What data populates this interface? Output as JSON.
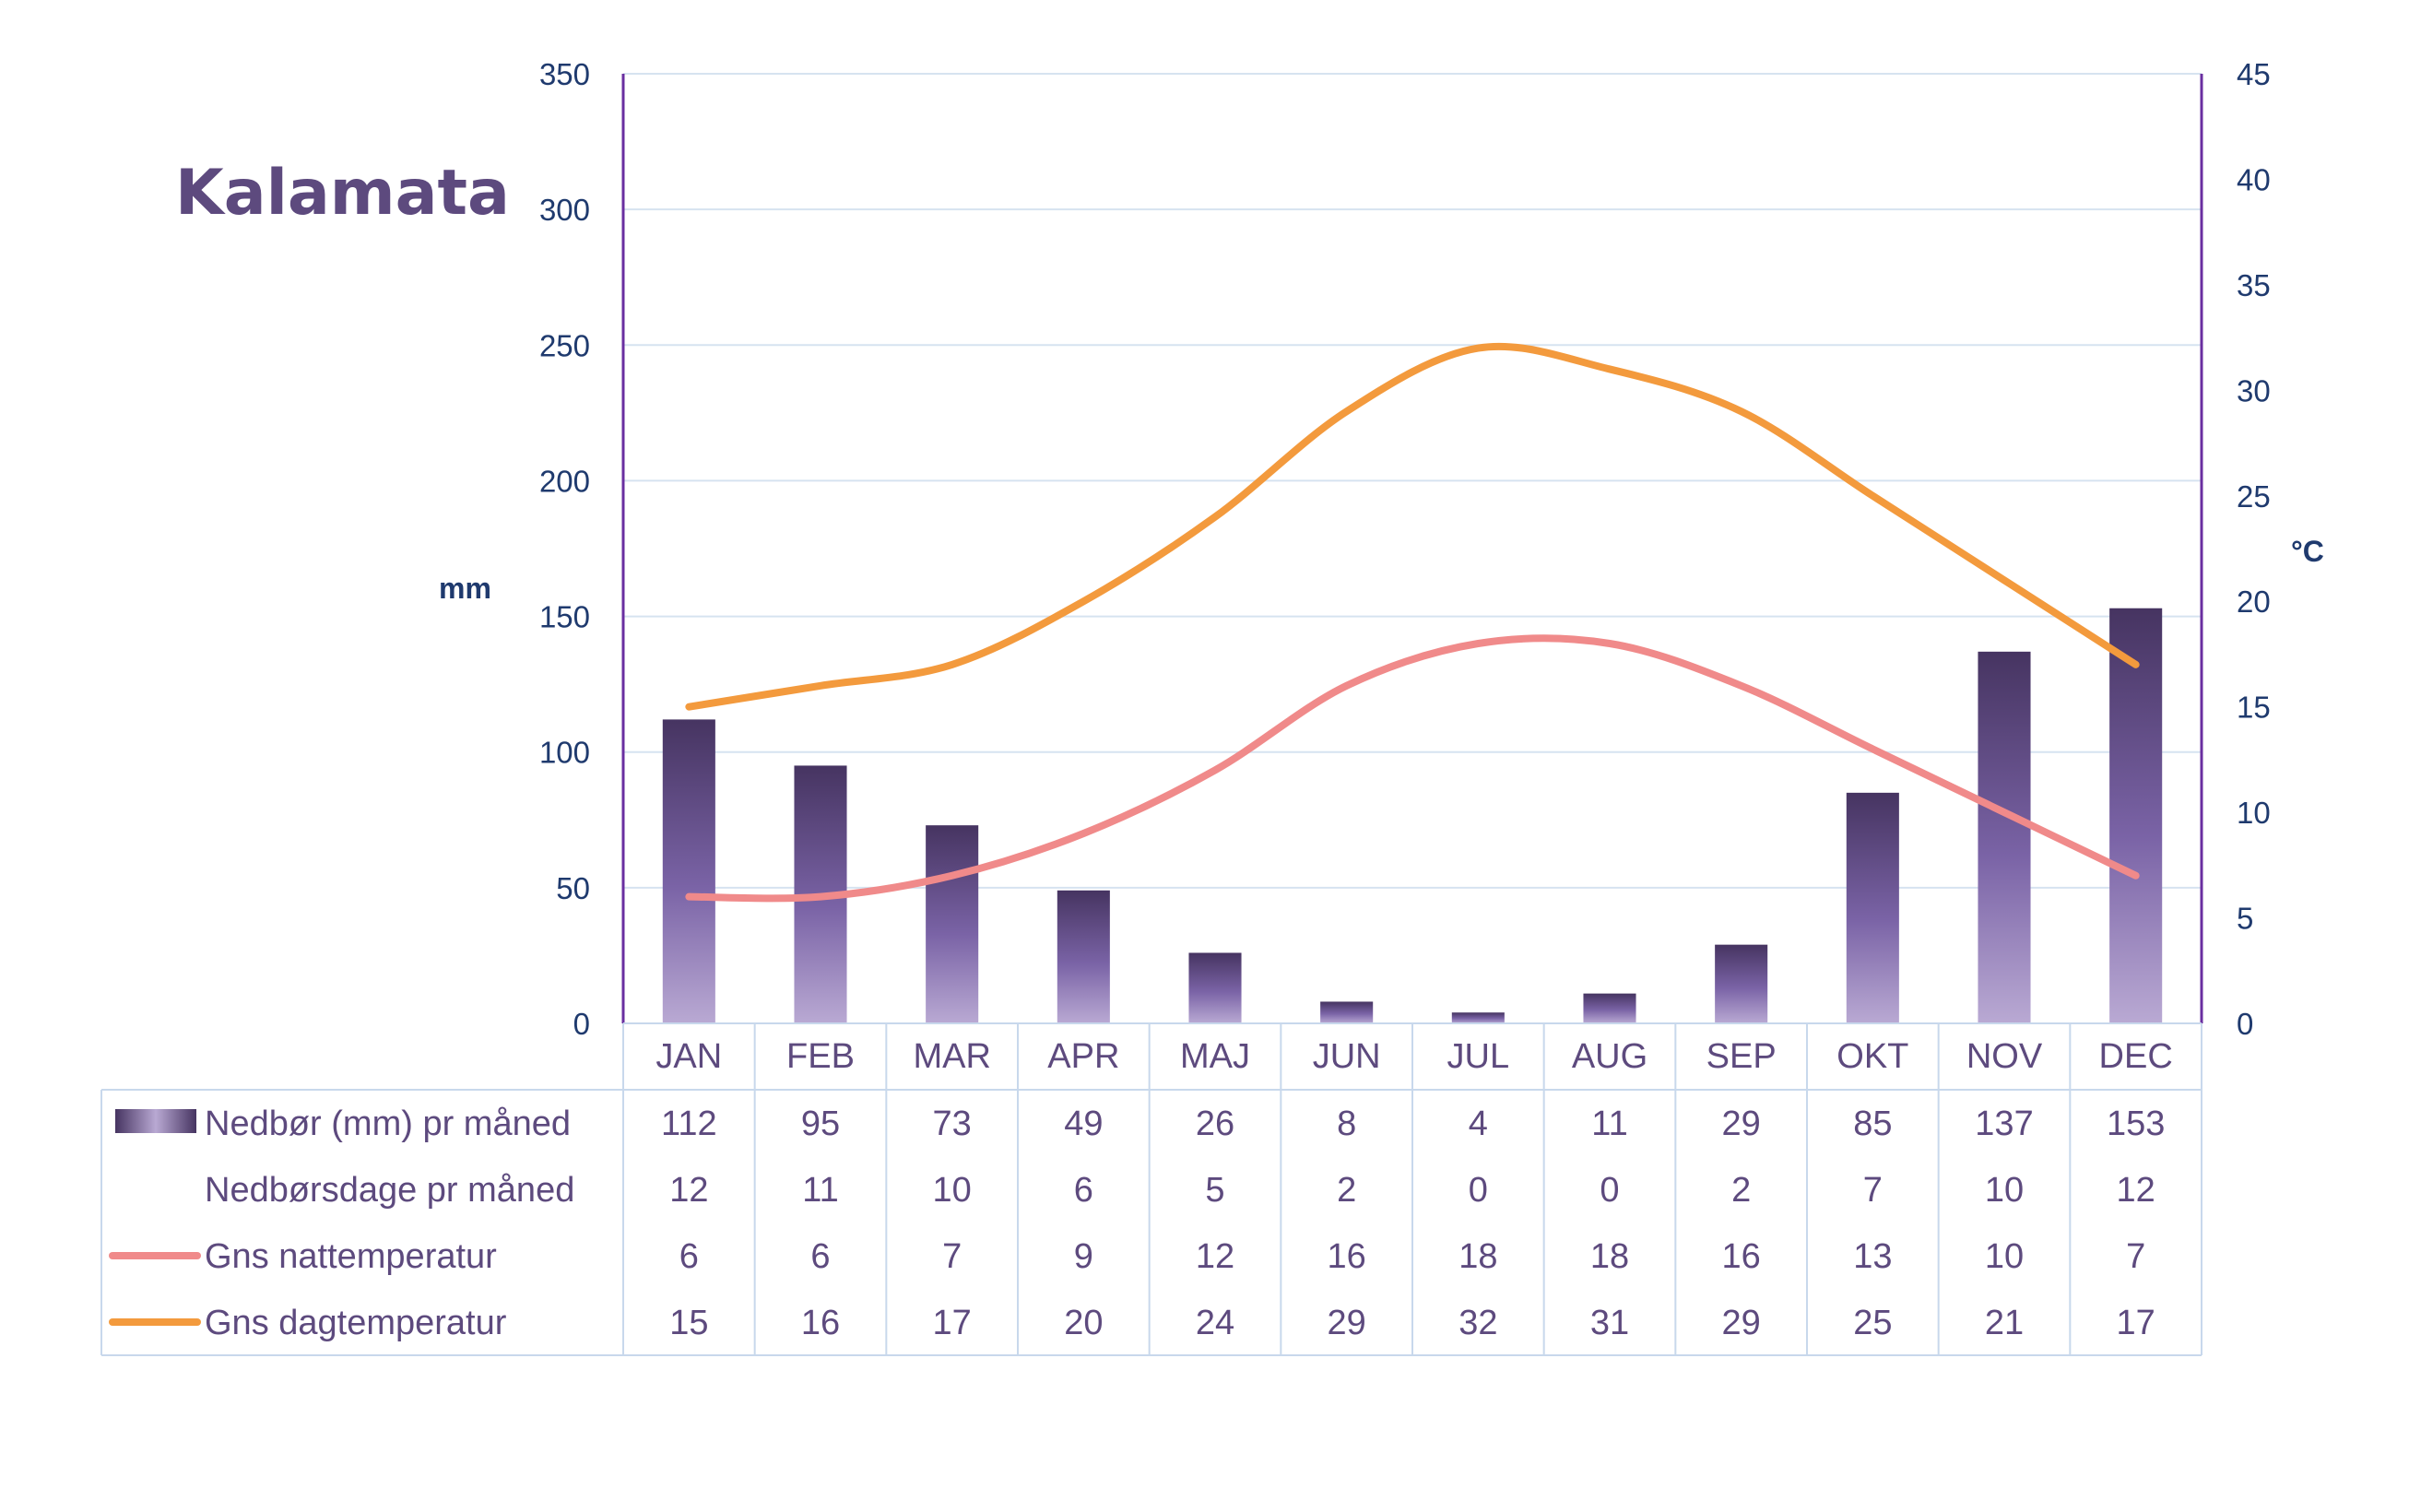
{
  "chart_data": {
    "type": "bar+line",
    "title": "Kalamata",
    "ylabel_left": "mm",
    "ylabel_right": "°C",
    "ylim_left": [
      0,
      350
    ],
    "ylim_right": [
      0,
      45
    ],
    "yticks_left": [
      "0",
      "50",
      "100",
      "150",
      "200",
      "250",
      "300",
      "350"
    ],
    "yticks_right": [
      "0",
      "5",
      "10",
      "15",
      "20",
      "25",
      "30",
      "35",
      "40",
      "45"
    ],
    "categories": [
      "JAN",
      "FEB",
      "MAR",
      "APR",
      "MAJ",
      "JUN",
      "JUL",
      "AUG",
      "SEP",
      "OKT",
      "NOV",
      "DEC"
    ],
    "grid": true,
    "series": [
      {
        "name": "Nedbør (mm) pr måned",
        "kind": "bar",
        "axis": "left",
        "color": "#5b4780",
        "values": [
          112,
          95,
          73,
          49,
          26,
          8,
          4,
          11,
          29,
          85,
          137,
          153
        ]
      },
      {
        "name": "Nedbørsdage pr måned",
        "kind": "table-only",
        "values": [
          12,
          11,
          10,
          6,
          5,
          2,
          0,
          0,
          2,
          7,
          10,
          12
        ]
      },
      {
        "name": "Gns nattemperatur",
        "kind": "line",
        "axis": "right",
        "color": "#f08a8a",
        "values": [
          6,
          6,
          7,
          9,
          12,
          16,
          18,
          18,
          16,
          13,
          10,
          7
        ]
      },
      {
        "name": "Gns dagtemperatur",
        "kind": "line",
        "axis": "right",
        "color": "#f39a3d",
        "values": [
          15,
          16,
          17,
          20,
          24,
          29,
          32,
          31,
          29,
          25,
          21,
          17
        ]
      }
    ]
  },
  "colors": {
    "axis_text": "#1f3a6e",
    "table_text": "#5d4a7e",
    "grid": "#d6e3f0",
    "axis_line": "#6a2fa0",
    "table_border": "#c8d8ec"
  }
}
